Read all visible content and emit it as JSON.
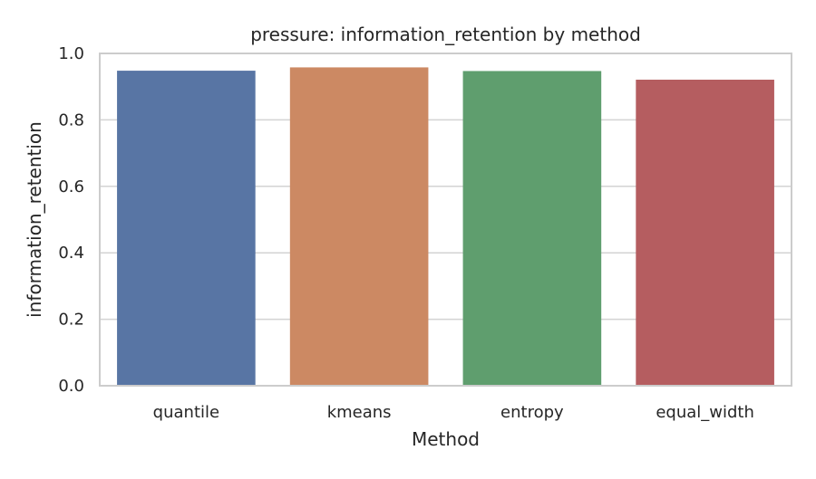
{
  "chart_data": {
    "type": "bar",
    "title": "pressure: information_retention by method",
    "xlabel": "Method",
    "ylabel": "information_retention",
    "categories": [
      "quantile",
      "kmeans",
      "entropy",
      "equal_width"
    ],
    "values": [
      0.948,
      0.958,
      0.947,
      0.921
    ],
    "colors": [
      "#5875a4",
      "#cc8963",
      "#5f9e6e",
      "#b55d60"
    ],
    "ylim": [
      0,
      1.0
    ],
    "yticks": [
      "0.0",
      "0.2",
      "0.4",
      "0.6",
      "0.8",
      "1.0"
    ],
    "grid": "horizontal",
    "legend": "none"
  }
}
